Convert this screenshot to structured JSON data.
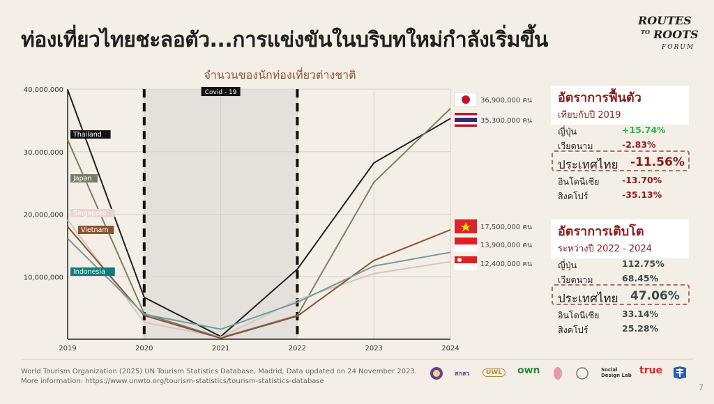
{
  "header": {
    "title": "ท่องเที่ยวไทยชะลอตัว...การแข่งขันในบริบทใหม่กำลังเริ่มขึ้น"
  },
  "logo": {
    "line1": "ROUTES",
    "line2": "TO",
    "line3": "ROOTS",
    "line4": "FORUM"
  },
  "chart_data": {
    "type": "line",
    "title": "จำนวนของนักท่องเที่ยวต่างชาติ",
    "x": [
      "2019",
      "2020",
      "2021",
      "2022",
      "2023",
      "2024"
    ],
    "ylim": [
      0,
      40000000
    ],
    "yticks": [
      "10,000,000",
      "20,000,000",
      "30,000,000",
      "40,000,000"
    ],
    "grid": true,
    "series": [
      {
        "name": "Thailand",
        "color": "#1f1f1f",
        "values": [
          39900000,
          6700000,
          430000,
          11200000,
          28200000,
          35300000
        ]
      },
      {
        "name": "Japan",
        "color": "#7a7d68",
        "values": [
          31900000,
          4100000,
          250000,
          3800000,
          25100000,
          36900000
        ]
      },
      {
        "name": "Singapore",
        "color": "#d9c3c0",
        "values": [
          19100000,
          2700000,
          330000,
          6300000,
          10500000,
          12400000
        ]
      },
      {
        "name": "Vietnam",
        "color": "#8b5234",
        "values": [
          18000000,
          3800000,
          160000,
          3700000,
          12600000,
          17500000
        ]
      },
      {
        "name": "Indonesia",
        "color": "#6f9e9c",
        "values": [
          16100000,
          4000000,
          1600000,
          5900000,
          11700000,
          13900000
        ]
      }
    ],
    "covid_label": "Covid - 19",
    "end_labels": [
      {
        "text": "36,900,000 คน",
        "flag": "japan-flag-icon"
      },
      {
        "text": "35,300,000 คน",
        "flag": "thailand-flag-icon"
      },
      {
        "text": "17,500,000 คน",
        "flag": "vietnam-flag-icon"
      },
      {
        "text": "13,900,000 คน",
        "flag": "indonesia-flag-icon"
      },
      {
        "text": "12,400,000 คน",
        "flag": "singapore-flag-icon"
      }
    ]
  },
  "recovery": {
    "title": "อัตราการฟื้นตัว",
    "subtitle": "เทียบกับปี 2019",
    "rows": [
      {
        "country": "ญี่ปุ่น",
        "value": "+15.74%"
      },
      {
        "country": "เวียดนาม",
        "value": "-2.83%"
      },
      {
        "country": "ประเทศไทย",
        "value": "-11.56%"
      },
      {
        "country": "อินโดนีเซีย",
        "value": "-13.70%"
      },
      {
        "country": "สิงคโปร์",
        "value": "-35.13%"
      }
    ]
  },
  "growth": {
    "title": "อัตราการเติบโต",
    "subtitle": "ระหว่างปี 2022 - 2024",
    "rows": [
      {
        "country": "ญี่ปุ่น",
        "value": "112.75%"
      },
      {
        "country": "เวียดนาม",
        "value": "68.45%"
      },
      {
        "country": "ประเทศไทย",
        "value": "47.06%"
      },
      {
        "country": "อินโดนีเซีย",
        "value": "33.14%"
      },
      {
        "country": "สิงคโปร์",
        "value": "25.28%"
      }
    ]
  },
  "footer": {
    "source": "World Tourism Organization (2025) UN Tourism Statistics Database, Madrid, Data updated on 24 November 2023.",
    "more": "More information: https://www.unwto.org/tourism-statistics/tourism-statistics-database",
    "page": "7"
  },
  "partners": [
    "สกสว",
    "UWL",
    "own",
    "Social Design Lab",
    "true"
  ]
}
